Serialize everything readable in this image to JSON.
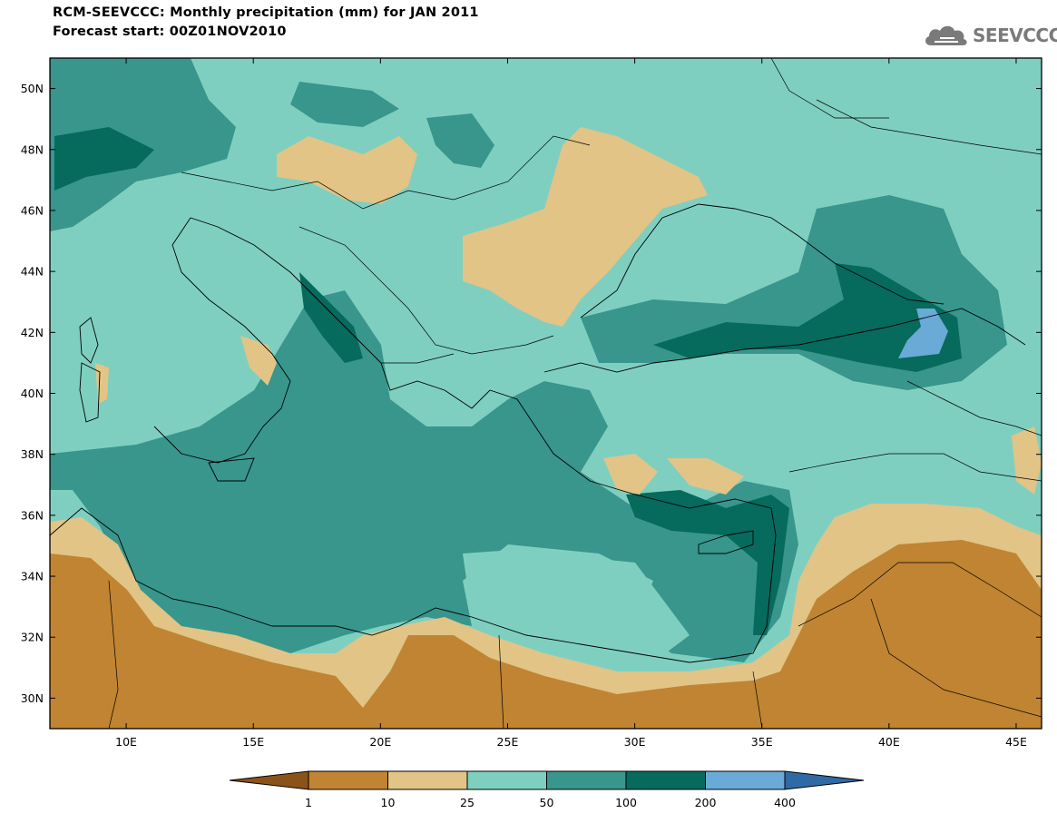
{
  "header": {
    "title": "RCM-SEEVCCC: Monthly precipitation (mm) for JAN 2011",
    "subtitle": "Forecast start: 00Z01NOV2010"
  },
  "logo": {
    "text": "SEEVCCC",
    "icon": "cloud-icon"
  },
  "map": {
    "lat_labels": [
      "50N",
      "48N",
      "46N",
      "44N",
      "42N",
      "40N",
      "38N",
      "36N",
      "34N",
      "32N",
      "30N"
    ],
    "lon_labels": [
      "10E",
      "15E",
      "20E",
      "25E",
      "30E",
      "35E",
      "40E",
      "45E"
    ],
    "extent": {
      "lon_min": 7,
      "lon_max": 46,
      "lat_min": 29,
      "lat_max": 51
    }
  },
  "legend": {
    "labels": [
      "1",
      "10",
      "25",
      "50",
      "100",
      "200",
      "400"
    ],
    "colors": [
      "#8a531a",
      "#c08432",
      "#e1c486",
      "#7fcfc0",
      "#38968c",
      "#066a5c",
      "#6aaad6",
      "#2f6aa4"
    ]
  }
}
